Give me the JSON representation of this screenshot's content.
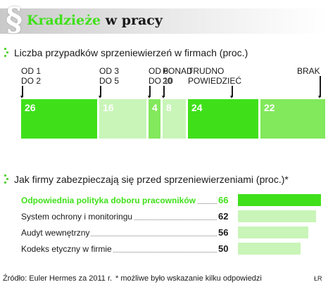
{
  "header": {
    "logo": "§",
    "title_accent": "Kradzieże",
    "title_rest": "w pracy"
  },
  "colors": {
    "bright_green": "#3fe01a",
    "pale_green": "#c9f5b8",
    "mid_green": "#82e85c",
    "text": "#1a1a1a"
  },
  "chart_data": [
    {
      "type": "bar",
      "title": "Liczba przypadków sprzeniewierzeń w firmach (proc.)",
      "categories": [
        "OD 1\nDO 2",
        "OD 3\nDO 5",
        "OD 6\nDO 10",
        "PONAD\n20",
        "TRUDNO\nPOWIEDZIEĆ",
        "BRAK"
      ],
      "category_lines": [
        [
          "OD 1",
          "DO 2"
        ],
        [
          "OD 3",
          "DO 5"
        ],
        [
          "OD 6",
          "DO 10"
        ],
        [
          "PONAD",
          "20"
        ],
        [
          "TRUDNO",
          "POWIEDZIEĆ"
        ],
        [
          "BRAK"
        ]
      ],
      "values": [
        26,
        16,
        4,
        8,
        24,
        22
      ],
      "segment_colors": [
        "#3fe01a",
        "#c9f5b8",
        "#82e85c",
        "#c9f5b8",
        "#3fe01a",
        "#82e85c"
      ],
      "stacked": true,
      "orientation": "horizontal-stacked"
    },
    {
      "type": "bar",
      "title": "Jak firmy zabezpieczają się przed sprzeniewierzeniami (proc.)*",
      "orientation": "horizontal",
      "categories": [
        "Odpowiednia polityka doboru pracowników",
        "System ochrony i monitoringu",
        "Audyt wewnętrzny",
        "Kodeks etyczny w firmie"
      ],
      "values": [
        66,
        62,
        56,
        50
      ],
      "highlight_index": 0,
      "bar_colors": [
        "#3fe01a",
        "#c9f5b8",
        "#c9f5b8",
        "#c9f5b8"
      ]
    }
  ],
  "footer": {
    "source": "Źródło: Euler Hermes za 2011 r.",
    "footnote": "* możliwe było wskazanie kilku odpowiedzi",
    "initials": "ŁR"
  }
}
